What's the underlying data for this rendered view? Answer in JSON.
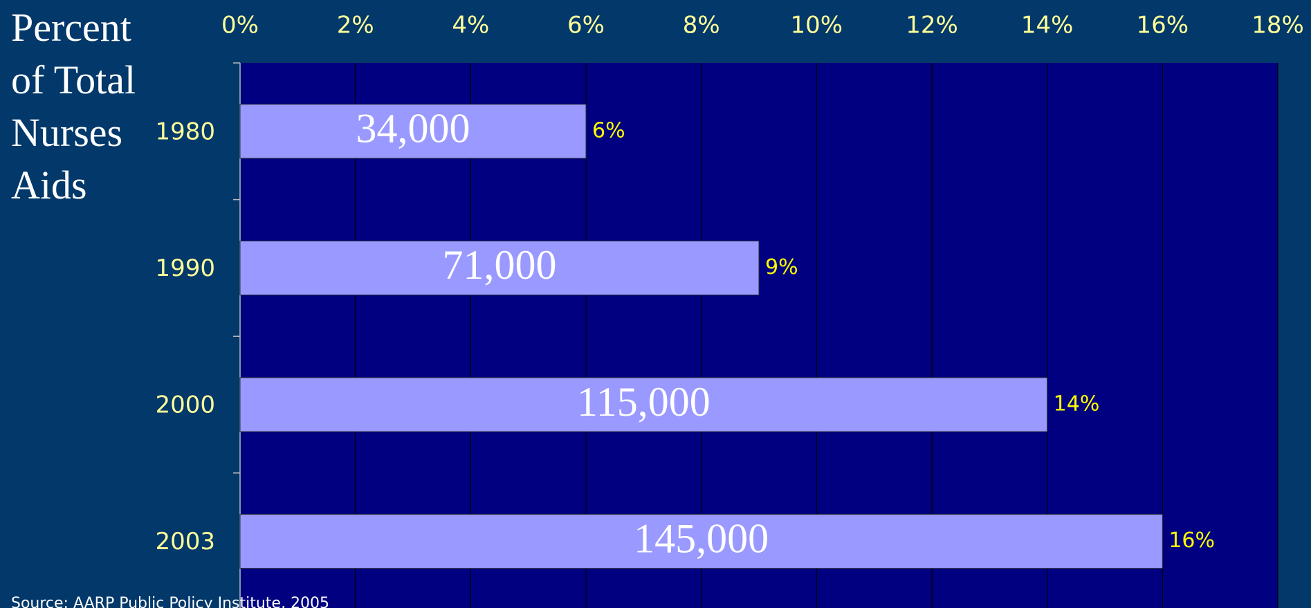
{
  "chart_data": {
    "type": "bar",
    "orientation": "horizontal",
    "y_label": "Percent of Total Nurses Aids",
    "categories": [
      "1980",
      "1990",
      "2000",
      "2003"
    ],
    "series": [
      {
        "name": null,
        "color": "#9999ff",
        "values": [
          6,
          9,
          14,
          16
        ],
        "value_labels": [
          "6%",
          "9%",
          "14%",
          "16%"
        ],
        "bar_labels": [
          "34,000",
          "71,000",
          "115,000",
          "145,000"
        ]
      }
    ],
    "xlim": [
      0,
      18
    ],
    "xticks": [
      {
        "value": 0,
        "label": "0%"
      },
      {
        "value": 2,
        "label": "2%"
      },
      {
        "value": 4,
        "label": "4%"
      },
      {
        "value": 6,
        "label": "6%"
      },
      {
        "value": 8,
        "label": "8%"
      },
      {
        "value": 10,
        "label": "10%"
      },
      {
        "value": 12,
        "label": "12%"
      },
      {
        "value": 14,
        "label": "14%"
      },
      {
        "value": 16,
        "label": "16%"
      },
      {
        "value": 18,
        "label": "18%"
      }
    ],
    "grid": true,
    "source": "Source: AARP Public Policy Institute, 2005"
  }
}
